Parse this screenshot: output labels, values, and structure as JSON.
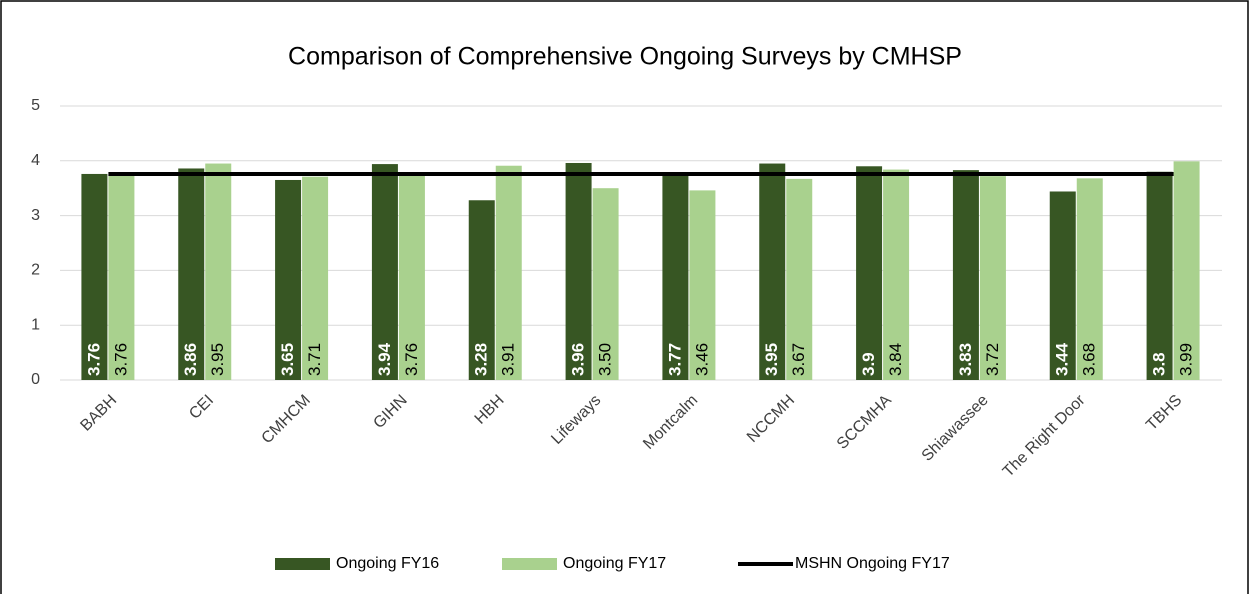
{
  "chart_data": {
    "type": "bar",
    "title": "Comparison of Comprehensive Ongoing Surveys by CMHSP",
    "categories": [
      "BABH",
      "CEI",
      "CMHCM",
      "GIHN",
      "HBH",
      "Lifeways",
      "Montcalm",
      "NCCMH",
      "SCCMHA",
      "Shiawassee",
      "The Right Door",
      "TBHS"
    ],
    "series": [
      {
        "name": "Ongoing FY16",
        "color": "#375623",
        "values": [
          3.76,
          3.86,
          3.65,
          3.94,
          3.28,
          3.96,
          3.77,
          3.95,
          3.9,
          3.83,
          3.44,
          3.8
        ]
      },
      {
        "name": "Ongoing FY17",
        "color": "#a9d18e",
        "values": [
          3.76,
          3.95,
          3.71,
          3.76,
          3.91,
          3.5,
          3.46,
          3.67,
          3.84,
          3.72,
          3.68,
          3.99
        ],
        "value_labels": [
          "3.76",
          "3.95",
          "3.71",
          "3.76",
          "3.91",
          "3.50",
          "3.46",
          "3.67",
          "3.84",
          "3.72",
          "3.68",
          "3.99"
        ]
      },
      {
        "name": "MSHN Ongoing FY17",
        "color": "#000000",
        "type": "line",
        "values": [
          3.76,
          3.76,
          3.76,
          3.76,
          3.76,
          3.76,
          3.76,
          3.76,
          3.76,
          3.76,
          3.76,
          3.76
        ]
      }
    ],
    "ylim": [
      0,
      5
    ],
    "yticks": [
      0,
      1,
      2,
      3,
      4,
      5
    ],
    "grid": true,
    "legend": "bottom"
  }
}
